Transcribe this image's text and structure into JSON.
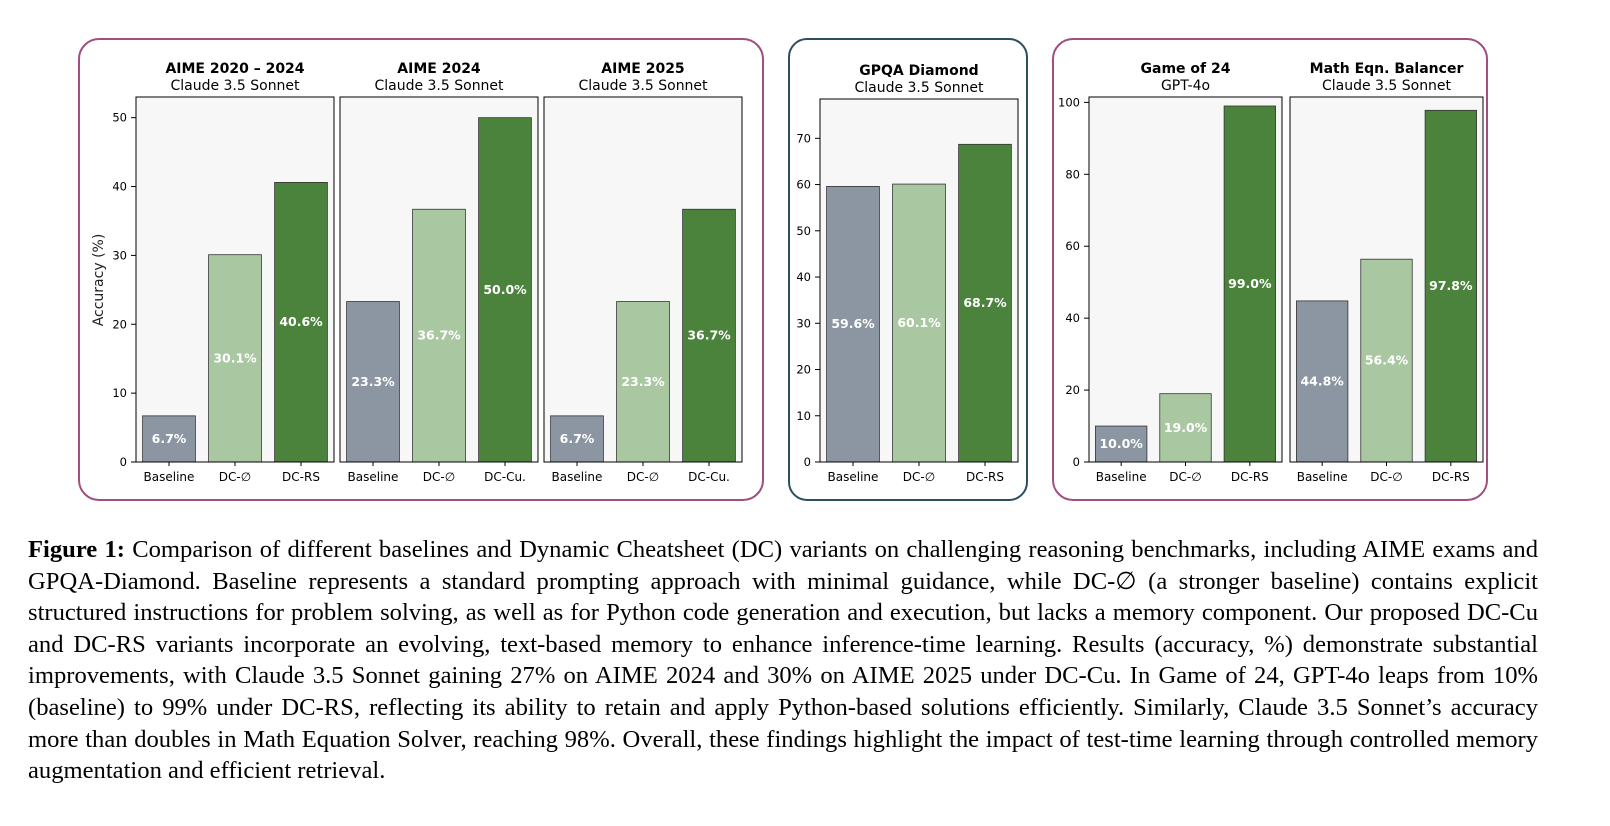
{
  "colors": {
    "baseline": "#8c96a2",
    "dc_empty": "#a9c8a2",
    "dc_strong": "#4c833c",
    "group_border_pink": "#a04f7e",
    "group_border_teal": "#2c4f5f",
    "panel_bg": "#f7f7f7"
  },
  "y_axis_label": "Accuracy (%)",
  "chart_data": [
    {
      "type": "bar",
      "title": "AIME 2020 – 2024",
      "subtitle": "Claude 3.5 Sonnet",
      "categories": [
        "Baseline",
        "DC-∅",
        "DC-RS"
      ],
      "values": [
        6.7,
        30.1,
        40.6
      ],
      "value_labels": [
        "6.7%",
        "30.1%",
        "40.6%"
      ],
      "ylim": [
        0,
        53
      ],
      "yticks": [
        0,
        10,
        20,
        30,
        40,
        50
      ],
      "ylabel": "Accuracy (%)"
    },
    {
      "type": "bar",
      "title": "AIME 2024",
      "subtitle": "Claude 3.5 Sonnet",
      "categories": [
        "Baseline",
        "DC-∅",
        "DC-Cu."
      ],
      "values": [
        23.3,
        36.7,
        50.0
      ],
      "value_labels": [
        "23.3%",
        "36.7%",
        "50.0%"
      ],
      "ylim": [
        0,
        53
      ]
    },
    {
      "type": "bar",
      "title": "AIME 2025",
      "subtitle": "Claude 3.5 Sonnet",
      "categories": [
        "Baseline",
        "DC-∅",
        "DC-Cu."
      ],
      "values": [
        6.7,
        23.3,
        36.7
      ],
      "value_labels": [
        "6.7%",
        "23.3%",
        "36.7%"
      ],
      "ylim": [
        0,
        53
      ]
    },
    {
      "type": "bar",
      "title": "GPQA Diamond",
      "subtitle": "Claude 3.5 Sonnet",
      "categories": [
        "Baseline",
        "DC-∅",
        "DC-RS"
      ],
      "values": [
        59.6,
        60.1,
        68.7
      ],
      "value_labels": [
        "59.6%",
        "60.1%",
        "68.7%"
      ],
      "ylim": [
        0,
        78.5
      ],
      "yticks": [
        0,
        10,
        20,
        30,
        40,
        50,
        60,
        70
      ]
    },
    {
      "type": "bar",
      "title": "Game of 24",
      "subtitle": "GPT-4o",
      "categories": [
        "Baseline",
        "DC-∅",
        "DC-RS"
      ],
      "values": [
        10.0,
        19.0,
        99.0
      ],
      "value_labels": [
        "10.0%",
        "19.0%",
        "99.0%"
      ],
      "ylim": [
        0,
        101.5
      ],
      "yticks": [
        0,
        20,
        40,
        60,
        80,
        100
      ]
    },
    {
      "type": "bar",
      "title": "Math Eqn. Balancer",
      "subtitle": "Claude 3.5 Sonnet",
      "categories": [
        "Baseline",
        "DC-∅",
        "DC-RS"
      ],
      "values": [
        44.8,
        56.4,
        97.8
      ],
      "value_labels": [
        "44.8%",
        "56.4%",
        "97.8%"
      ],
      "ylim": [
        0,
        101.5
      ]
    }
  ],
  "caption": {
    "label": "Figure 1:",
    "text": " Comparison of different baselines and Dynamic Cheatsheet (DC) variants on challenging reasoning benchmarks, including AIME exams and GPQA-Diamond. Baseline represents a standard prompting approach with minimal guidance, while DC-∅ (a stronger baseline) contains explicit structured instructions for problem solving, as well as for Python code generation and execution, but lacks a memory component. Our proposed DC-Cu and DC-RS variants incorporate an evolving, text-based memory to enhance inference-time learning. Results (accuracy, %) demonstrate substantial improvements, with Claude 3.5 Sonnet gaining 27% on AIME 2024 and 30% on AIME 2025 under DC-Cu. In Game of 24, GPT-4o leaps from 10% (baseline) to 99% under DC-RS, reflecting its ability to retain and apply Python-based solutions efficiently. Similarly, Claude 3.5 Sonnet’s accuracy more than doubles in Math Equation Solver, reaching 98%. Overall, these findings highlight the impact of test-time learning through controlled memory augmentation and efficient retrieval."
  }
}
